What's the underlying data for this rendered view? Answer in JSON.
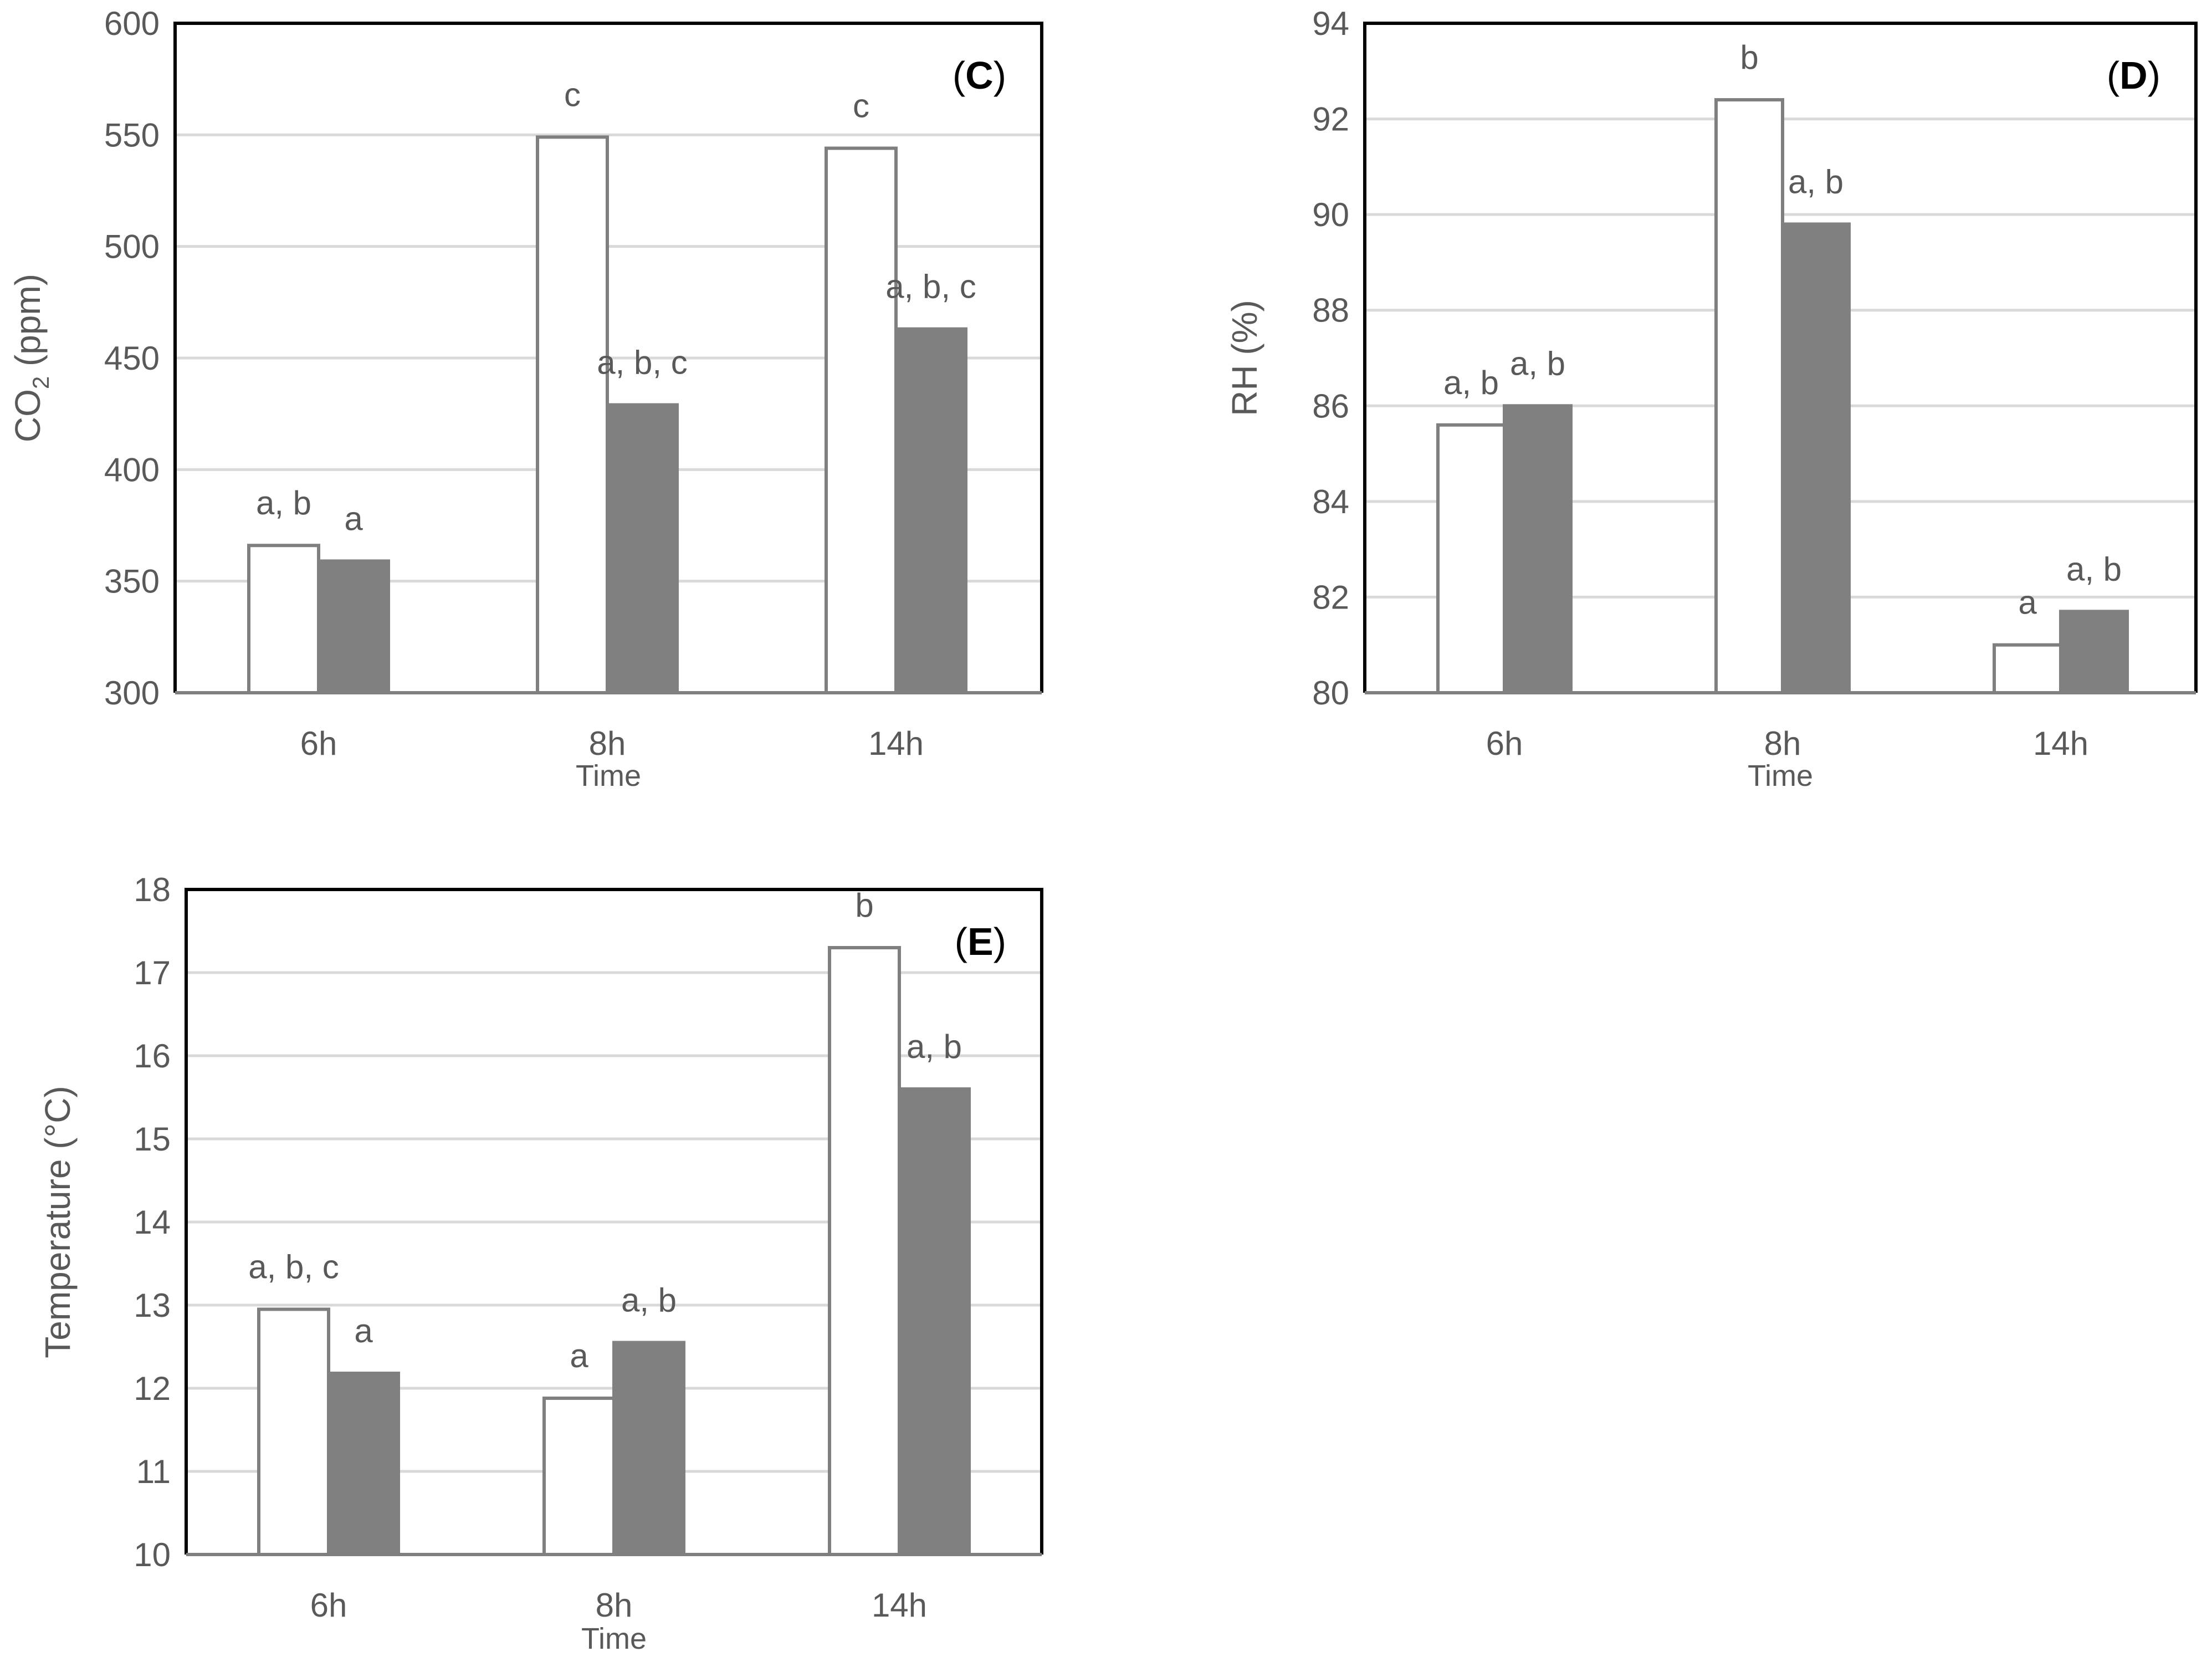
{
  "chart_data": [
    {
      "type": "bar",
      "panel_label": "C",
      "title": "",
      "xlabel": "Time",
      "ylabel_main": "CO",
      "ylabel_sub": "2",
      "ylabel_rest": " (ppm)",
      "categories": [
        "6h",
        "8h",
        "14h"
      ],
      "ylim": [
        300,
        600
      ],
      "yticks": [
        300,
        350,
        400,
        450,
        500,
        550,
        600
      ],
      "grid": true,
      "series": [
        {
          "name": "series-1",
          "fill": "#ffffff",
          "stroke": "#7f7f7f",
          "values": [
            366,
            549,
            544
          ],
          "annotations": [
            "a, b",
            "c",
            "c"
          ]
        },
        {
          "name": "series-2",
          "fill": "#808080",
          "stroke": "#808080",
          "values": [
            359,
            429,
            463
          ],
          "annotations": [
            "a",
            "a, b, c",
            "a, b, c"
          ]
        }
      ]
    },
    {
      "type": "bar",
      "panel_label": "D",
      "title": "",
      "xlabel": "Time",
      "ylabel_main": "RH (%)",
      "ylabel_sub": "",
      "ylabel_rest": "",
      "categories": [
        "6h",
        "8h",
        "14h"
      ],
      "ylim": [
        80,
        94
      ],
      "yticks": [
        80,
        82,
        84,
        86,
        88,
        90,
        92,
        94
      ],
      "grid": true,
      "series": [
        {
          "name": "series-1",
          "fill": "#ffffff",
          "stroke": "#7f7f7f",
          "values": [
            85.6,
            92.4,
            81.0
          ],
          "annotations": [
            "a, b",
            "b",
            "a"
          ]
        },
        {
          "name": "series-2",
          "fill": "#808080",
          "stroke": "#808080",
          "values": [
            86.0,
            89.8,
            81.7
          ],
          "annotations": [
            "a, b",
            "a, b",
            "a, b"
          ]
        }
      ]
    },
    {
      "type": "bar",
      "panel_label": "E",
      "title": "",
      "xlabel": "Time",
      "ylabel_main": "Temperature (°C)",
      "ylabel_sub": "",
      "ylabel_rest": "",
      "categories": [
        "6h",
        "8h",
        "14h"
      ],
      "ylim": [
        10,
        18
      ],
      "yticks": [
        10,
        11,
        12,
        13,
        14,
        15,
        16,
        17,
        18
      ],
      "grid": true,
      "series": [
        {
          "name": "series-1",
          "fill": "#ffffff",
          "stroke": "#7f7f7f",
          "values": [
            12.95,
            11.88,
            17.3
          ],
          "annotations": [
            "a, b, c",
            "a",
            "b"
          ]
        },
        {
          "name": "series-2",
          "fill": "#808080",
          "stroke": "#808080",
          "values": [
            12.18,
            12.55,
            15.6
          ],
          "annotations": [
            "a",
            "a, b",
            "a, b"
          ]
        }
      ]
    }
  ]
}
